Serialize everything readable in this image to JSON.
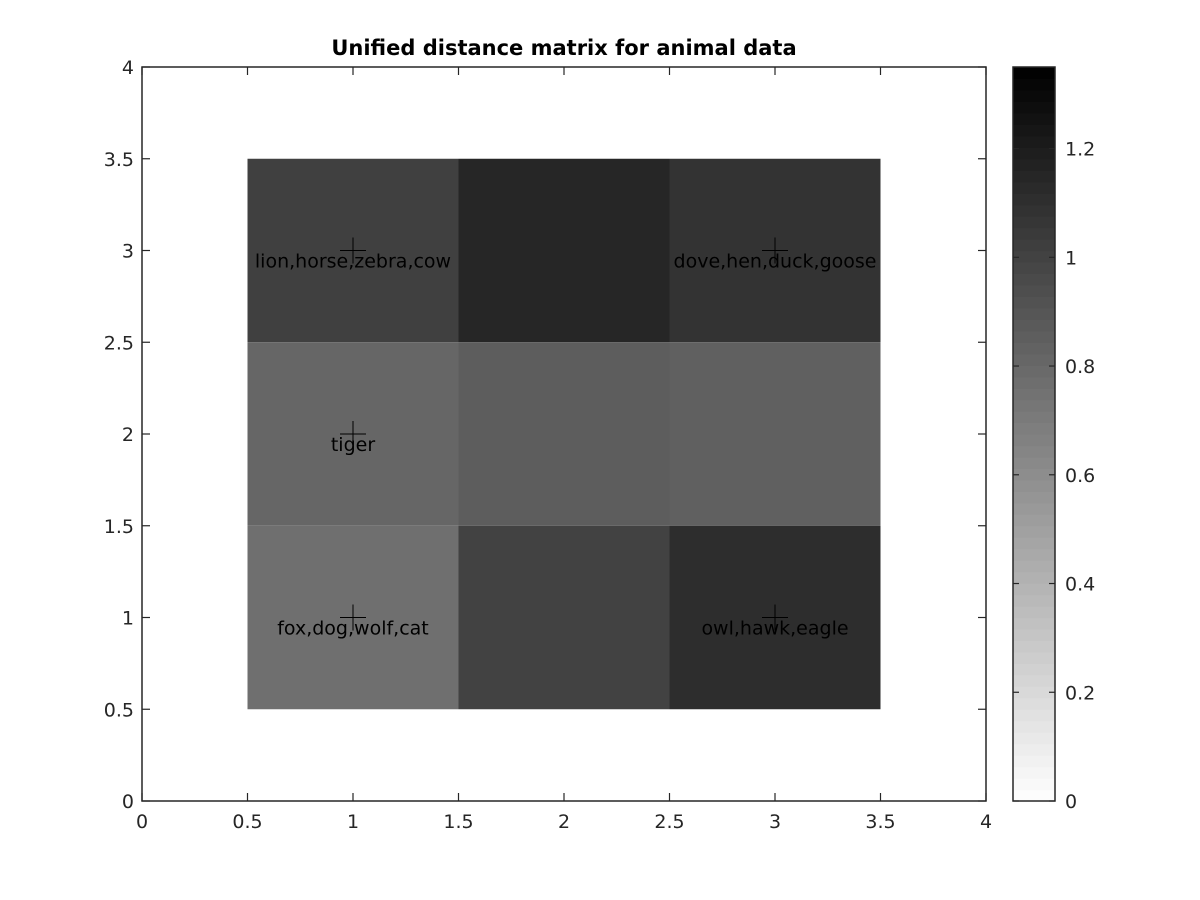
{
  "chart_data": {
    "type": "heatmap",
    "title": "Unified distance matrix for animal data",
    "xlabel": "",
    "ylabel": "",
    "xlim": [
      0,
      4
    ],
    "ylim": [
      0,
      4
    ],
    "x_ticks": [
      "0",
      "0.5",
      "1",
      "1.5",
      "2",
      "2.5",
      "3",
      "3.5",
      "4"
    ],
    "y_ticks": [
      "0",
      "0.5",
      "1",
      "1.5",
      "2",
      "2.5",
      "3",
      "3.5",
      "4"
    ],
    "colormap": "gray-reversed",
    "clim": [
      0,
      1.35
    ],
    "colorbar_ticks": [
      "0",
      "0.2",
      "0.4",
      "0.6",
      "0.8",
      "1",
      "1.2"
    ],
    "cells": [
      {
        "x": 1,
        "y": 3,
        "value": 1.01
      },
      {
        "x": 2,
        "y": 3,
        "value": 1.15
      },
      {
        "x": 3,
        "y": 3,
        "value": 1.08
      },
      {
        "x": 1,
        "y": 2,
        "value": 0.81
      },
      {
        "x": 2,
        "y": 2,
        "value": 0.86
      },
      {
        "x": 3,
        "y": 2,
        "value": 0.84
      },
      {
        "x": 1,
        "y": 1,
        "value": 0.76
      },
      {
        "x": 2,
        "y": 1,
        "value": 1.0
      },
      {
        "x": 3,
        "y": 1,
        "value": 1.11
      }
    ],
    "labels": [
      {
        "x": 1,
        "y": 3,
        "text": "lion,horse,zebra,cow"
      },
      {
        "x": 3,
        "y": 3,
        "text": "dove,hen,duck,goose"
      },
      {
        "x": 1,
        "y": 2,
        "text": "tiger"
      },
      {
        "x": 1,
        "y": 1,
        "text": "fox,dog,wolf,cat"
      },
      {
        "x": 3,
        "y": 1,
        "text": "owl,hawk,eagle"
      }
    ],
    "grid": false,
    "legend": "none"
  }
}
